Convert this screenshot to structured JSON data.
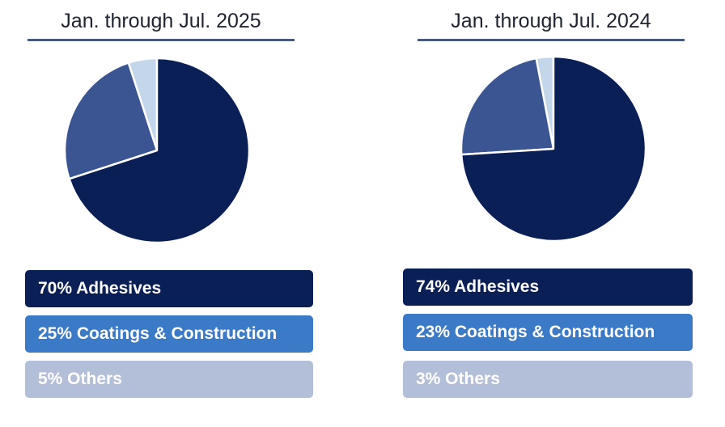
{
  "chart_data": [
    {
      "type": "pie",
      "title": "Jan. through Jul. 2025",
      "categories": [
        "Adhesives",
        "Coatings & Construction",
        "Others"
      ],
      "values": [
        70,
        25,
        5
      ],
      "labels": [
        "70% Adhesives",
        "25% Coatings & Construction",
        "5% Others"
      ],
      "colors": [
        "#0b1f57",
        "#3a5592",
        "#c3d6ea"
      ],
      "legend_colors": [
        "#0b1f57",
        "#3b7ac7",
        "#b3bfd8"
      ]
    },
    {
      "type": "pie",
      "title": "Jan. through Jul. 2024",
      "categories": [
        "Adhesives",
        "Coatings & Construction",
        "Others"
      ],
      "values": [
        74,
        23,
        3
      ],
      "labels": [
        "74% Adhesives",
        "23% Coatings & Construction",
        "3% Others"
      ],
      "colors": [
        "#0b1f57",
        "#3a5592",
        "#c3d6ea"
      ],
      "legend_colors": [
        "#0b1f57",
        "#3b7ac7",
        "#b3bfd8"
      ]
    }
  ]
}
